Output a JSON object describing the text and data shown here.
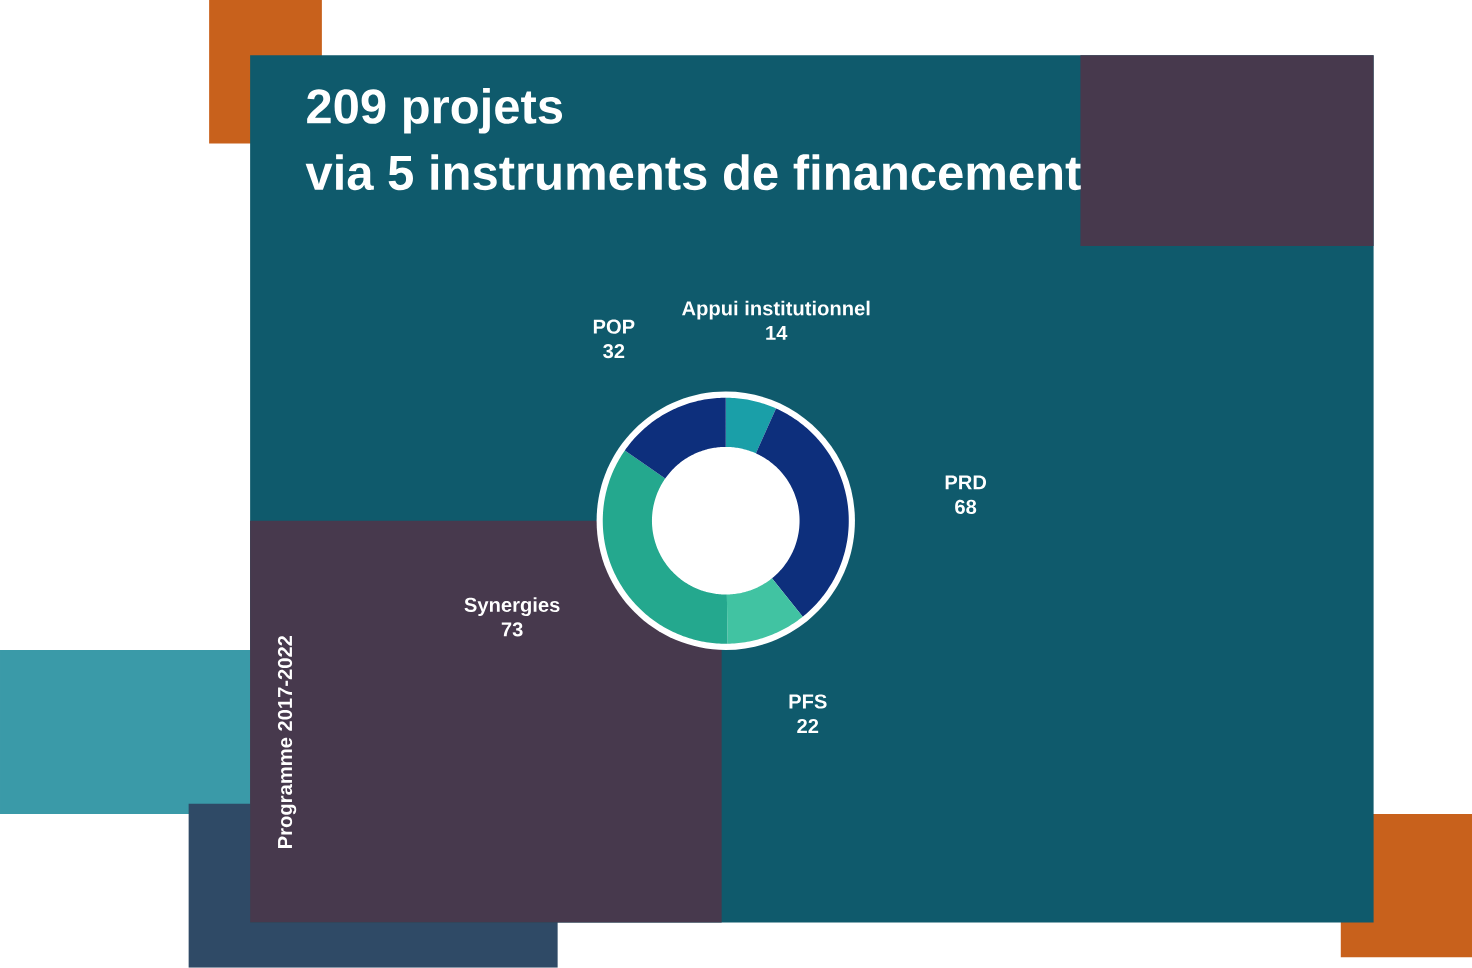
{
  "chart_data": {
    "type": "donut",
    "title": "209 projets",
    "subtitle": "via 5 instruments de financement",
    "categories": [
      "Appui institutionnel",
      "PRD",
      "PFS",
      "Synergies",
      "POP"
    ],
    "values": [
      14,
      68,
      22,
      73,
      32
    ],
    "colors": [
      "#1a9fa8",
      "#0d2f7c",
      "#41c3a2",
      "#24a88e",
      "#0d2f7c"
    ],
    "data_labels": true,
    "annotations": [
      "Programme 2017-2022"
    ]
  }
}
